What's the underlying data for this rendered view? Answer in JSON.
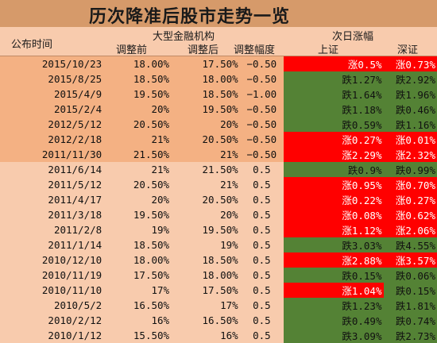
{
  "title": "历次降准后股市走势一览",
  "headers": {
    "announce_time": "公布时间",
    "big_institutions": "大型金融机构",
    "before": "调整前",
    "after": "调整后",
    "range": "调整幅度",
    "next_day": "次日涨幅",
    "shanghai": "上证",
    "shenzhen": "深证"
  },
  "colors": {
    "up": "#ff0000",
    "down": "#548235",
    "dark_rows": "#f4b183",
    "light_rows": "#f8cbad",
    "title_bar": "#d69a6a"
  },
  "rows": [
    {
      "date": "2015/10/23",
      "before": "18.00%",
      "after": "17.50%",
      "range": "−0.50",
      "sh": "涨0.5%",
      "sh_dir": "up",
      "sz": "涨0.73%",
      "sz_dir": "up",
      "shade": "dark"
    },
    {
      "date": "2015/8/25",
      "before": "18.50%",
      "after": "18.00%",
      "range": "−0.50",
      "sh": "跌1.27%",
      "sh_dir": "down",
      "sz": "跌2.92%",
      "sz_dir": "down",
      "shade": "dark"
    },
    {
      "date": "2015/4/9",
      "before": "19.50%",
      "after": "18.50%",
      "range": "−1.00",
      "sh": "跌1.64%",
      "sh_dir": "down",
      "sz": "跌1.96%",
      "sz_dir": "down",
      "shade": "dark"
    },
    {
      "date": "2015/2/4",
      "before": "20%",
      "after": "19.50%",
      "range": "−0.50",
      "sh": "跌1.18%",
      "sh_dir": "down",
      "sz": "跌0.46%",
      "sz_dir": "down",
      "shade": "dark"
    },
    {
      "date": "2012/5/12",
      "before": "20.50%",
      "after": "20%",
      "range": "−0.50",
      "sh": "跌0.59%",
      "sh_dir": "down",
      "sz": "跌1.16%",
      "sz_dir": "down",
      "shade": "dark"
    },
    {
      "date": "2012/2/18",
      "before": "21%",
      "after": "20.50%",
      "range": "−0.50",
      "sh": "涨0.27%",
      "sh_dir": "up",
      "sz": "涨0.01%",
      "sz_dir": "up",
      "shade": "dark"
    },
    {
      "date": "2011/11/30",
      "before": "21.50%",
      "after": "21%",
      "range": "−0.50",
      "sh": "涨2.29%",
      "sh_dir": "up",
      "sz": "涨2.32%",
      "sz_dir": "up",
      "shade": "dark"
    },
    {
      "date": "2011/6/14",
      "before": "21%",
      "after": "21.50%",
      "range": "0.5",
      "sh": "跌0.9%",
      "sh_dir": "down",
      "sz": "跌0.99%",
      "sz_dir": "down",
      "shade": "light"
    },
    {
      "date": "2011/5/12",
      "before": "20.50%",
      "after": "21%",
      "range": "0.5",
      "sh": "涨0.95%",
      "sh_dir": "up",
      "sz": "涨0.70%",
      "sz_dir": "up",
      "shade": "light"
    },
    {
      "date": "2011/4/17",
      "before": "20%",
      "after": "20.50%",
      "range": "0.5",
      "sh": "涨0.22%",
      "sh_dir": "up",
      "sz": "涨0.27%",
      "sz_dir": "up",
      "shade": "light"
    },
    {
      "date": "2011/3/18",
      "before": "19.50%",
      "after": "20%",
      "range": "0.5",
      "sh": "涨0.08%",
      "sh_dir": "up",
      "sz": "涨0.62%",
      "sz_dir": "up",
      "shade": "light"
    },
    {
      "date": "2011/2/8",
      "before": "19%",
      "after": "19.50%",
      "range": "0.5",
      "sh": "涨1.12%",
      "sh_dir": "up",
      "sz": "涨2.06%",
      "sz_dir": "up",
      "shade": "light"
    },
    {
      "date": "2011/1/14",
      "before": "18.50%",
      "after": "19%",
      "range": "0.5",
      "sh": "跌3.03%",
      "sh_dir": "down",
      "sz": "跌4.55%",
      "sz_dir": "down",
      "shade": "light"
    },
    {
      "date": "2010/12/10",
      "before": "18.00%",
      "after": "18.50%",
      "range": "0.5",
      "sh": "涨2.88%",
      "sh_dir": "up",
      "sz": "涨3.57%",
      "sz_dir": "up",
      "shade": "light"
    },
    {
      "date": "2010/11/19",
      "before": "17.50%",
      "after": "18.00%",
      "range": "0.5",
      "sh": "跌0.15%",
      "sh_dir": "down",
      "sz": "跌0.06%",
      "sz_dir": "down",
      "shade": "light"
    },
    {
      "date": "2010/11/10",
      "before": "17%",
      "after": "17.50%",
      "range": "0.5",
      "sh": "涨1.04%",
      "sh_dir": "up",
      "sz": "跌0.15%",
      "sz_dir": "down",
      "shade": "light"
    },
    {
      "date": "2010/5/2",
      "before": "16.50%",
      "after": "17%",
      "range": "0.5",
      "sh": "跌1.23%",
      "sh_dir": "down",
      "sz": "跌1.81%",
      "sz_dir": "down",
      "shade": "light"
    },
    {
      "date": "2010/2/12",
      "before": "16%",
      "after": "16.50%",
      "range": "0.5",
      "sh": "跌0.49%",
      "sh_dir": "down",
      "sz": "跌0.74%",
      "sz_dir": "down",
      "shade": "light"
    },
    {
      "date": "2010/1/12",
      "before": "15.50%",
      "after": "16%",
      "range": "0.5",
      "sh": "跌3.09%",
      "sh_dir": "down",
      "sz": "跌2.73%",
      "sz_dir": "down",
      "shade": "light"
    }
  ]
}
